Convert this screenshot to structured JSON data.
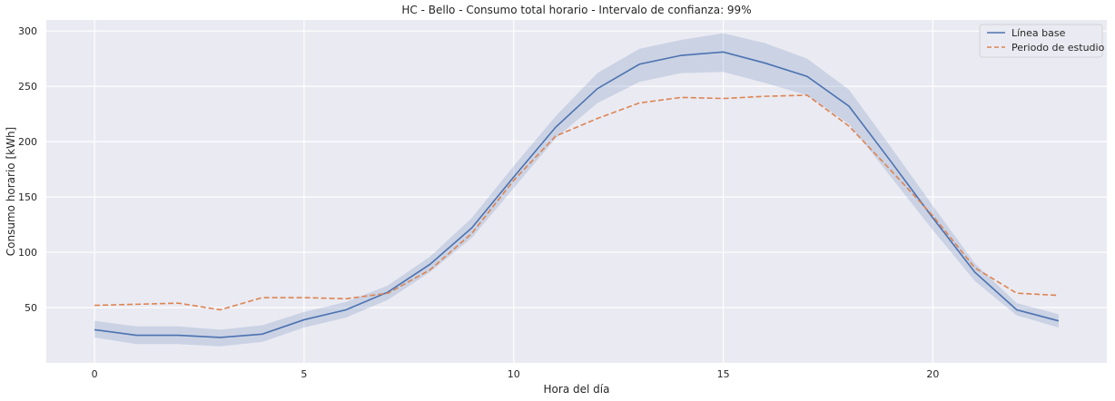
{
  "chart_data": {
    "type": "line",
    "title": "HC - Bello - Consumo total horario - Intervalo de confianza: 99%",
    "xlabel": "Hora del día",
    "ylabel": "Consumo horario [kWh]",
    "x": [
      0,
      1,
      2,
      3,
      4,
      5,
      6,
      7,
      8,
      9,
      10,
      11,
      12,
      13,
      14,
      15,
      16,
      17,
      18,
      19,
      20,
      21,
      22,
      23
    ],
    "xlim": [
      -1.15,
      24.15
    ],
    "ylim": [
      0,
      310
    ],
    "xticks": [
      0,
      5,
      10,
      15,
      20
    ],
    "yticks": [
      50,
      100,
      150,
      200,
      250,
      300
    ],
    "grid": true,
    "legend_position": "top-right",
    "series": [
      {
        "name": "Línea base",
        "color": "#4c72b0",
        "style": "solid",
        "values": [
          30,
          25,
          25,
          23,
          26,
          39,
          48,
          64,
          89,
          122,
          168,
          213,
          248,
          270,
          278,
          281,
          271,
          259,
          232,
          182,
          131,
          82,
          48,
          38
        ],
        "ci_lower": [
          23,
          17,
          17,
          15,
          19,
          32,
          41,
          57,
          82,
          113,
          158,
          203,
          235,
          254,
          262,
          263,
          253,
          242,
          216,
          168,
          120,
          74,
          43,
          32
        ],
        "ci_upper": [
          38,
          33,
          33,
          30,
          34,
          46,
          55,
          70,
          96,
          131,
          178,
          223,
          262,
          284,
          292,
          298,
          289,
          275,
          247,
          195,
          142,
          90,
          54,
          44
        ]
      },
      {
        "name": "Periodo de estudio",
        "color": "#dd8452",
        "style": "dashed",
        "values": [
          52,
          53,
          54,
          48,
          59,
          59,
          58,
          63,
          84,
          117,
          165,
          205,
          221,
          235,
          240,
          239,
          241,
          242,
          214,
          174,
          133,
          86,
          63,
          61
        ]
      }
    ]
  }
}
